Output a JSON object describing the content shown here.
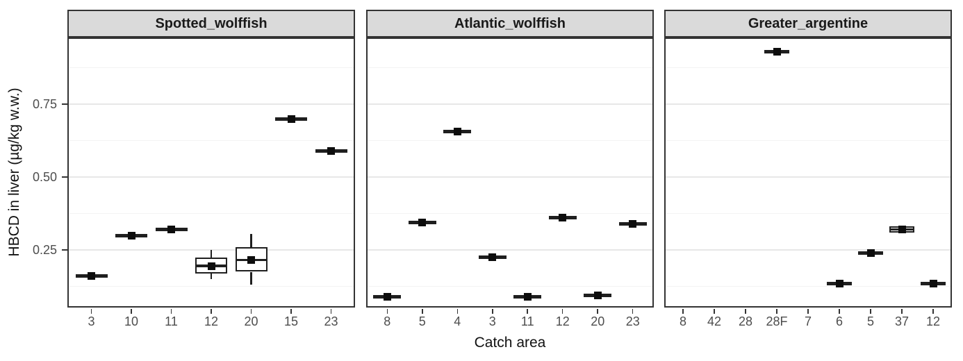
{
  "colors": {
    "strip_bg": "#DADADA",
    "strip_border": "#333333",
    "panel_border": "#333333",
    "grid_major": "#E7E7E7",
    "grid_minor": "#F3F3F3",
    "data": "#1F1F1F",
    "mean_point": "#0D0D0D",
    "tick_mark": "#333333",
    "tick_label": "#4D4D4D",
    "axis_title": "#111111"
  },
  "chart_data": {
    "type": "boxplot",
    "faceted": true,
    "title": "",
    "xlabel": "Catch area",
    "ylabel": "HBCD in liver (µg/kg w.w.)",
    "ylim": [
      0.05,
      0.98
    ],
    "yticks": [
      0.75,
      0.5,
      0.25
    ],
    "ytick_labels": [
      "0.75",
      "0.50",
      "0.25"
    ],
    "minor_yticks": [
      0.875,
      0.625,
      0.375,
      0.125
    ],
    "grid": true,
    "legend": "none",
    "facets": [
      {
        "label": "Spotted_wolffish",
        "categories": [
          "3",
          "10",
          "11",
          "12",
          "20",
          "15",
          "23"
        ],
        "boxes": [
          {
            "category": "3",
            "median": 0.16,
            "mean": 0.16
          },
          {
            "category": "10",
            "median": 0.3,
            "mean": 0.3
          },
          {
            "category": "11",
            "median": 0.32,
            "mean": 0.32
          },
          {
            "category": "12",
            "min": 0.15,
            "q1": 0.17,
            "median": 0.195,
            "q3": 0.225,
            "max": 0.25,
            "mean": 0.195
          },
          {
            "category": "20",
            "min": 0.13,
            "q1": 0.175,
            "median": 0.215,
            "q3": 0.26,
            "max": 0.305,
            "mean": 0.215
          },
          {
            "category": "15",
            "median": 0.7,
            "mean": 0.7
          },
          {
            "category": "23",
            "median": 0.59,
            "mean": 0.59
          }
        ]
      },
      {
        "label": "Atlantic_wolffish",
        "categories": [
          "8",
          "5",
          "4",
          "3",
          "11",
          "12",
          "20",
          "23"
        ],
        "boxes": [
          {
            "category": "8",
            "median": 0.09,
            "mean": 0.09
          },
          {
            "category": "5",
            "median": 0.345,
            "mean": 0.345
          },
          {
            "category": "4",
            "median": 0.655,
            "mean": 0.655
          },
          {
            "category": "3",
            "median": 0.225,
            "mean": 0.225
          },
          {
            "category": "11",
            "median": 0.09,
            "mean": 0.09
          },
          {
            "category": "12",
            "median": 0.36,
            "mean": 0.36
          },
          {
            "category": "20",
            "median": 0.095,
            "mean": 0.095
          },
          {
            "category": "23",
            "median": 0.34,
            "mean": 0.34
          }
        ]
      },
      {
        "label": "Greater_argentine",
        "categories": [
          "8",
          "42",
          "28",
          "28F",
          "7",
          "6",
          "5",
          "37",
          "12"
        ],
        "boxes": [
          {
            "category": "8",
            "median": null
          },
          {
            "category": "42",
            "median": null
          },
          {
            "category": "28",
            "median": null
          },
          {
            "category": "28F",
            "median": 0.93,
            "mean": 0.93
          },
          {
            "category": "7",
            "median": null
          },
          {
            "category": "6",
            "median": 0.135,
            "mean": 0.135
          },
          {
            "category": "5",
            "median": 0.24,
            "mean": 0.24
          },
          {
            "category": "37",
            "min": 0.31,
            "q1": 0.31,
            "median": 0.32,
            "q3": 0.33,
            "max": 0.33,
            "mean": 0.32
          },
          {
            "category": "12",
            "median": 0.135,
            "mean": 0.135
          }
        ]
      }
    ]
  }
}
